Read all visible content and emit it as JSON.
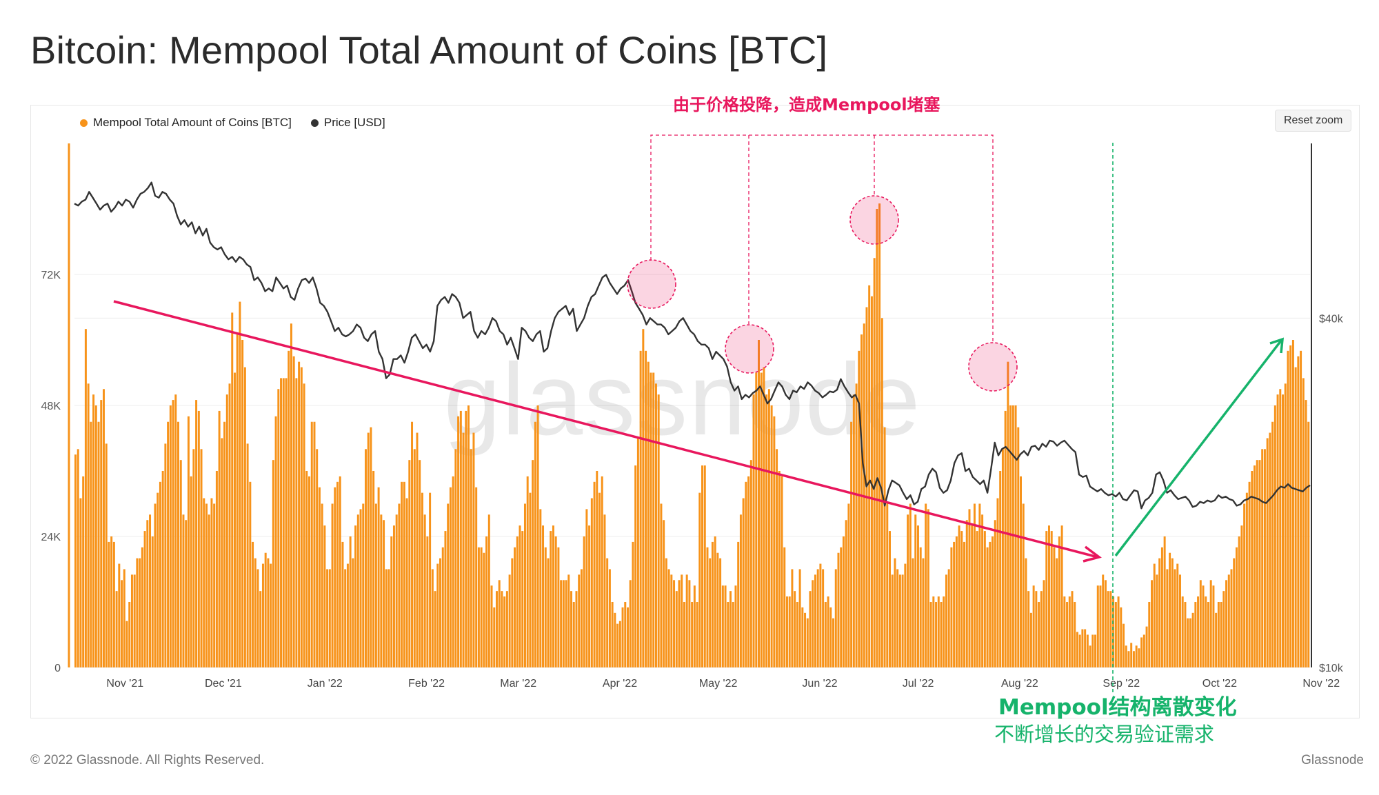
{
  "title": "Bitcoin: Mempool Total Amount of Coins [BTC]",
  "reset_zoom_label": "Reset zoom",
  "watermark": "glassnode",
  "annotations": {
    "top": "由于价格投降，造成Mempool堵塞",
    "bottom_line1": "Mempool结构离散变化",
    "bottom_line2": "不断增长的交易验证需求"
  },
  "footer": {
    "copyright": "© 2022 Glassnode. All Rights Reserved.",
    "brand": "Glassnode"
  },
  "colors": {
    "bars": "#f7931a",
    "price": "#333333",
    "annotation_red": "#e8175d",
    "annotation_green": "#16b36b"
  },
  "chart_data": {
    "type": "bar",
    "legend": [
      {
        "name": "Mempool Total Amount of Coins [BTC]",
        "color": "#f7931a"
      },
      {
        "name": "Price [USD]",
        "color": "#333333"
      }
    ],
    "x_ticks": [
      "Nov '21",
      "Dec '21",
      "Jan '22",
      "Feb '22",
      "Mar '22",
      "Apr '22",
      "May '22",
      "Jun '22",
      "Jul '22",
      "Aug '22",
      "Sep '22",
      "Oct '22",
      "Nov '22"
    ],
    "y_left_ticks": [
      "0",
      "24K",
      "48K",
      "72K"
    ],
    "y_left_range": [
      0,
      96000
    ],
    "y_right_ticks": [
      "$10k",
      "$40k"
    ],
    "y_right_range": [
      10000,
      80000
    ],
    "y_right_scale": "log",
    "legend_position": "top-left",
    "grid": true,
    "series": [
      {
        "name": "Mempool Total Amount of Coins [BTC]",
        "x_start": "2021-10-25",
        "x_end": "2022-11-06",
        "values": [
          39000,
          40000,
          31000,
          35000,
          62000,
          52000,
          45000,
          50000,
          48000,
          45000,
          49000,
          51000,
          41000,
          23000,
          24000,
          23000,
          14000,
          19000,
          16000,
          18000,
          8500,
          12000,
          17000,
          17000,
          20000,
          20000,
          22000,
          25000,
          27000,
          28000,
          24000,
          30000,
          32000,
          34000,
          36000,
          41000,
          45000,
          48000,
          49000,
          50000,
          45000,
          38000,
          28000,
          27000,
          46000,
          35000,
          40000,
          49000,
          47000,
          40000,
          31000,
          30000,
          28000,
          31000,
          30000,
          36000,
          47000,
          42000,
          45000,
          50000,
          52000,
          65000,
          54000,
          61000,
          67000,
          60000,
          55000,
          41000,
          34000,
          23000,
          20000,
          18000,
          14000,
          19000,
          21000,
          20000,
          19000,
          38000,
          46000,
          51000,
          53000,
          53000,
          53000,
          58000,
          63000,
          57000,
          53000,
          56000,
          55000,
          52000,
          36000,
          35000,
          45000,
          45000,
          40000,
          33000,
          30000,
          26000,
          18000,
          18000,
          30000,
          33000,
          34000,
          35000,
          23000,
          18000,
          19000,
          24000,
          20000,
          26000,
          28000,
          29000,
          30000,
          40000,
          43000,
          44000,
          36000,
          30000,
          33000,
          28000,
          27000,
          18000,
          18000,
          24000,
          26000,
          28000,
          30000,
          34000,
          34000,
          31000,
          38000,
          45000,
          40000,
          43000,
          38000,
          32000,
          28000,
          24000,
          32000,
          18000,
          14000,
          19000,
          20000,
          22000,
          25000,
          30000,
          33000,
          35000,
          40000,
          46000,
          47000,
          43000,
          47000,
          48000,
          40000,
          43000,
          33000,
          22000,
          22000,
          21000,
          24000,
          28000,
          15000,
          11000,
          14000,
          16000,
          14000,
          13000,
          14000,
          17000,
          20000,
          22000,
          24000,
          26000,
          25000,
          30000,
          35000,
          32000,
          38000,
          45000,
          48000,
          29000,
          26000,
          22000,
          20000,
          25000,
          26000,
          24000,
          22000,
          16000,
          16000,
          16000,
          17000,
          14000,
          12000,
          14000,
          17000,
          18000,
          24000,
          29000,
          26000,
          31000,
          34000,
          36000,
          32000,
          35000,
          28000,
          20000,
          18000,
          12000,
          10000,
          8000,
          8500,
          11000,
          12000,
          11000,
          16000,
          23000,
          37000,
          42000,
          58000,
          62000,
          58000,
          56000,
          54000,
          54000,
          52000,
          50000,
          30000,
          27000,
          20000,
          18000,
          17000,
          16000,
          14000,
          16000,
          17000,
          12000,
          17000,
          16000,
          12000,
          15000,
          12000,
          32000,
          37000,
          37000,
          22000,
          20000,
          23000,
          24000,
          21000,
          20000,
          15000,
          15000,
          12000,
          14000,
          12000,
          15000,
          23000,
          28000,
          31000,
          34000,
          35000,
          38000,
          50000,
          54000,
          60000,
          54000,
          55000,
          50000,
          51000,
          48000,
          46000,
          40000,
          36000,
          35000,
          22000,
          13000,
          13000,
          18000,
          14000,
          12000,
          18000,
          11000,
          10000,
          9000,
          14000,
          16000,
          17000,
          18000,
          19000,
          18000,
          12000,
          13000,
          11000,
          9000,
          18000,
          21000,
          22000,
          24000,
          27000,
          30000,
          45000,
          50000,
          52000,
          58000,
          61000,
          63000,
          66000,
          70000,
          68000,
          75000,
          84000,
          85000,
          64000,
          44000,
          30000,
          25000,
          17000,
          20000,
          18000,
          17000,
          17000,
          19000,
          28000,
          30000,
          20000,
          28000,
          26000,
          22000,
          20000,
          30000,
          29000,
          12000,
          13000,
          12000,
          13000,
          12000,
          13000,
          17000,
          18000,
          22000,
          23000,
          24000,
          26000,
          25000,
          23000,
          27000,
          29000,
          26000,
          30000,
          25000,
          30000,
          28000,
          25000,
          22000,
          23000,
          24000,
          27000,
          31000,
          36000,
          40000,
          47000,
          56000,
          48000,
          48000,
          48000,
          44000,
          35000,
          30000,
          20000,
          14000,
          10000,
          15000,
          14000,
          12000,
          14000,
          16000,
          25000,
          26000,
          25000,
          22000,
          20000,
          24000,
          26000,
          13000,
          12000,
          13000,
          14000,
          12000,
          6500,
          6000,
          7000,
          7000,
          6000,
          4000,
          6000,
          6000,
          15000,
          15000,
          17000,
          16000,
          14000,
          14000,
          13000,
          12000,
          13000,
          11000,
          8000,
          4000,
          3000,
          4500,
          3000,
          4000,
          3500,
          5500,
          6000,
          7500,
          12000,
          16000,
          19000,
          17000,
          20000,
          22000,
          24000,
          18000,
          21000,
          20000,
          18000,
          19000,
          17000,
          13000,
          12000,
          9000,
          9000,
          10000,
          12000,
          13000,
          16000,
          15000,
          13000,
          12000,
          16000,
          15000,
          10000,
          12000,
          12000,
          14000,
          16000,
          17000,
          18000,
          20000,
          22000,
          24000,
          26000,
          30000,
          32000,
          34000,
          36000,
          37000,
          38000,
          38000,
          40000,
          40000,
          42000,
          43000,
          45000,
          48000,
          50000,
          51000,
          50000,
          52000,
          58000,
          59000,
          60000,
          55000,
          57000,
          58000,
          53000,
          49000,
          45000
        ]
      },
      {
        "name": "Price [USD]",
        "x_start": "2021-10-25",
        "x_end": "2022-11-06",
        "values": [
          63000,
          62500,
          63500,
          64000,
          66000,
          64500,
          63000,
          61500,
          62500,
          63000,
          61000,
          62000,
          63500,
          62500,
          64000,
          63500,
          62000,
          64000,
          65500,
          66000,
          67000,
          68500,
          65000,
          64500,
          66000,
          65500,
          64000,
          63000,
          60000,
          58000,
          59000,
          57500,
          58500,
          56000,
          57500,
          55500,
          57000,
          54000,
          53000,
          52500,
          53000,
          51500,
          50500,
          51000,
          50000,
          51000,
          50500,
          49500,
          49000,
          46500,
          47000,
          46000,
          44500,
          45000,
          44500,
          47000,
          46000,
          45000,
          45500,
          43500,
          43000,
          45000,
          46500,
          46800,
          46000,
          47000,
          45000,
          42500,
          42000,
          41000,
          39500,
          38000,
          38500,
          37500,
          37200,
          37500,
          38000,
          39000,
          38500,
          37000,
          36500,
          37500,
          38000,
          35000,
          34000,
          31500,
          32000,
          34000,
          34000,
          34500,
          33500,
          35000,
          37000,
          37500,
          36500,
          35500,
          36000,
          35000,
          36500,
          42000,
          43000,
          43500,
          42500,
          44000,
          43500,
          42500,
          40000,
          40500,
          41000,
          38000,
          37000,
          38000,
          37500,
          38500,
          40000,
          39500,
          38000,
          37500,
          36000,
          37000,
          35500,
          34000,
          38500,
          38000,
          37000,
          36500,
          37500,
          38000,
          35000,
          35500,
          38000,
          40000,
          41000,
          41500,
          42000,
          40500,
          41500,
          38000,
          39000,
          40000,
          42000,
          43500,
          44000,
          45500,
          47000,
          47500,
          46000,
          45000,
          44000,
          45000,
          45500,
          46500,
          44500,
          42500,
          41500,
          40500,
          39000,
          40000,
          39500,
          39000,
          39000,
          38500,
          37500,
          38000,
          38500,
          39500,
          40000,
          39000,
          38000,
          37500,
          36500,
          36000,
          36000,
          35500,
          34000,
          35000,
          34500,
          34000,
          33000,
          31000,
          30000,
          30500,
          29000,
          29500,
          29200,
          29700,
          30000,
          30500,
          29500,
          28500,
          29000,
          30000,
          31000,
          30500,
          29500,
          29000,
          30000,
          29800,
          30500,
          30200,
          31000,
          30600,
          30000,
          29700,
          29200,
          29500,
          29900,
          29800,
          30100,
          31400,
          30500,
          29800,
          29200,
          29500,
          28500,
          22500,
          20500,
          21000,
          20300,
          21200,
          20400,
          19000,
          20200,
          21000,
          20800,
          20600,
          20000,
          19500,
          19800,
          19100,
          19300,
          20300,
          20500,
          21500,
          22000,
          21700,
          20400,
          20000,
          20200,
          21000,
          22500,
          23200,
          23400,
          21800,
          22000,
          21300,
          21000,
          20700,
          21000,
          20000,
          22000,
          24400,
          23200,
          23800,
          24000,
          23600,
          23200,
          22800,
          23300,
          23600,
          23200,
          24000,
          24100,
          23700,
          24300,
          24000,
          24600,
          24500,
          24100,
          24400,
          24600,
          24200,
          23800,
          23500,
          21500,
          21300,
          21400,
          20500,
          20300,
          20100,
          20300,
          20000,
          19800,
          19900,
          19700,
          20000,
          19500,
          19400,
          19800,
          20200,
          20100,
          18800,
          19400,
          19600,
          20000,
          21500,
          21700,
          21000,
          20000,
          20200,
          19800,
          19500,
          19600,
          19700,
          19400,
          18900,
          19000,
          19300,
          19200,
          19400,
          19300,
          19400,
          19800,
          19600,
          19700,
          19500,
          19400,
          19000,
          19100,
          19400,
          19500,
          19700,
          19600,
          19500,
          19300,
          19200,
          19500,
          19800,
          20200,
          20500,
          20400,
          20700,
          20400,
          20300,
          20200,
          20100,
          20400,
          20600
        ]
      }
    ]
  }
}
